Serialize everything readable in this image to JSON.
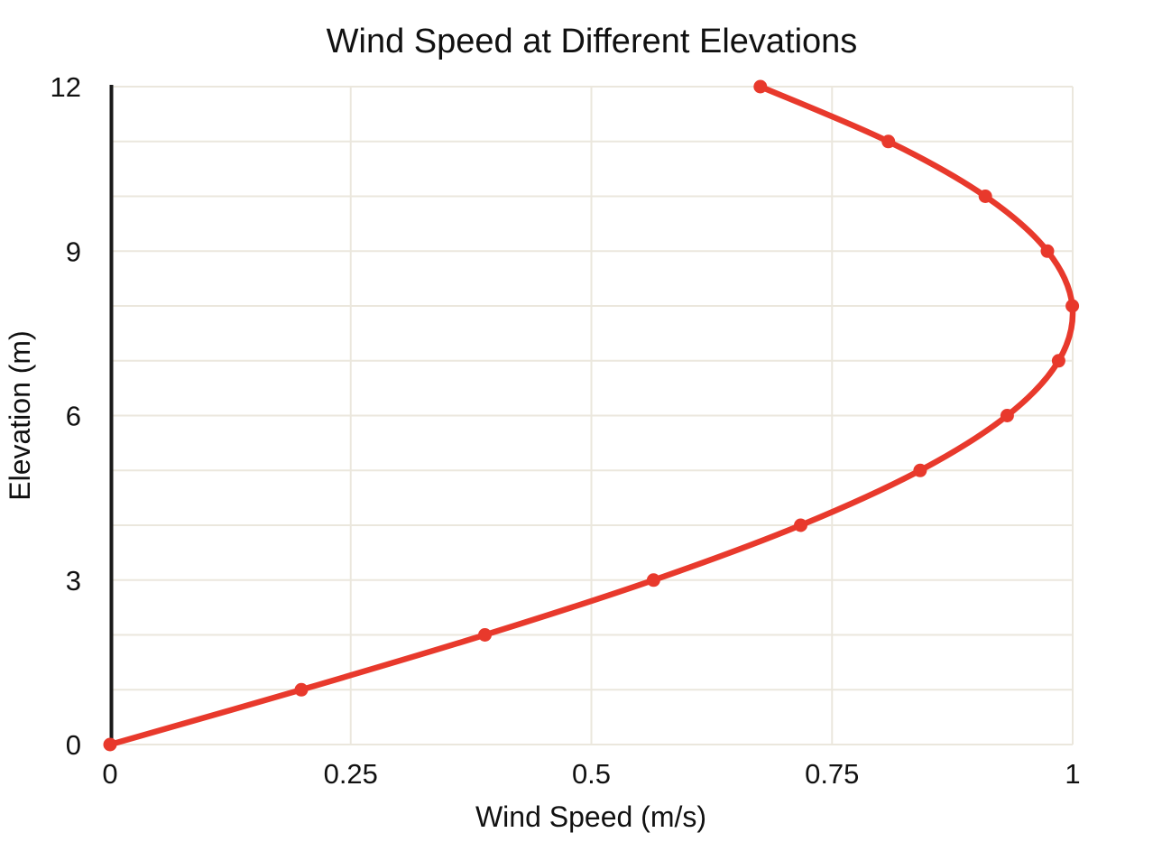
{
  "page": {
    "background": "#ffffff"
  },
  "chart_data": {
    "type": "line",
    "title": "Wind Speed at Different Elevations",
    "xlabel": "Wind Speed (m/s)",
    "ylabel": "Elevation (m)",
    "xlim": [
      0,
      1
    ],
    "ylim": [
      0,
      12
    ],
    "x_tick_values": [
      0,
      0.25,
      0.5,
      0.75,
      1
    ],
    "x_tick_labels": [
      "0",
      "0.25",
      "0.5",
      "0.75",
      "1"
    ],
    "y_tick_values": [
      0,
      3,
      6,
      9,
      12
    ],
    "y_tick_labels": [
      "0",
      "3",
      "6",
      "9",
      "12"
    ],
    "y_grid_step": 1,
    "grid": "on",
    "legend": "none",
    "series": [
      {
        "name": "wind speed profile",
        "color": "#e8392c",
        "marker": "circle",
        "x": [
          0.0,
          0.1987,
          0.3894,
          0.5646,
          0.7174,
          0.8415,
          0.932,
          0.9854,
          0.9996,
          0.9738,
          0.9093,
          0.8085,
          0.6755
        ],
        "y": [
          0,
          1,
          2,
          3,
          4,
          5,
          6,
          7,
          8,
          9,
          10,
          11,
          12
        ]
      }
    ]
  },
  "style": {
    "line_color": "#e8392c",
    "marker_color": "#e8392c",
    "grid_color": "#ebe7dd",
    "axis_line_color": "#1a1a1a",
    "text_color": "#111111"
  }
}
